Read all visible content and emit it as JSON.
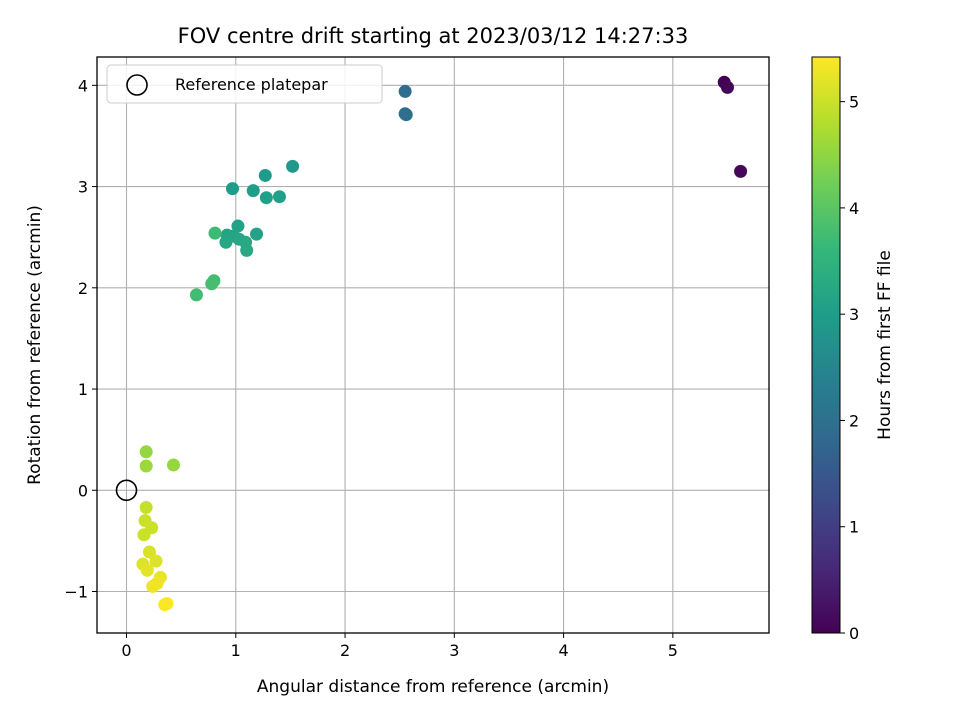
{
  "chart_data": {
    "type": "scatter",
    "title": "FOV centre drift starting at 2023/03/12 14:27:33",
    "xlabel": "Angular distance from reference (arcmin)",
    "ylabel": "Rotation from reference (arcmin)",
    "xlim": [
      -0.27,
      5.88
    ],
    "ylim": [
      -1.41,
      4.28
    ],
    "xticks": [
      0,
      1,
      2,
      3,
      4,
      5
    ],
    "yticks": [
      -1,
      0,
      1,
      2,
      3,
      4
    ],
    "xtick_labels": [
      "0",
      "1",
      "2",
      "3",
      "4",
      "5"
    ],
    "ytick_labels": [
      "−1",
      "0",
      "1",
      "2",
      "3",
      "4"
    ],
    "grid": true,
    "legend": {
      "position": "top-left",
      "entries": [
        {
          "label": "Reference platepar",
          "marker": "open-circle"
        }
      ]
    },
    "reference_point": {
      "x": 0,
      "y": 0
    },
    "colorbar": {
      "label": "Hours from first FF file",
      "range": [
        0,
        5.42
      ],
      "ticks": [
        0,
        1,
        2,
        3,
        4,
        5
      ],
      "tick_labels": [
        "0",
        "1",
        "2",
        "3",
        "4",
        "5"
      ],
      "colormap": "viridis",
      "colors": [
        "#440154",
        "#482878",
        "#3e4989",
        "#31688e",
        "#26828e",
        "#1f9e89",
        "#35b779",
        "#6ece58",
        "#b5de2b",
        "#fde725"
      ]
    },
    "points": [
      {
        "x": 5.47,
        "y": 4.03,
        "c": 0.0
      },
      {
        "x": 5.5,
        "y": 3.98,
        "c": 0.05
      },
      {
        "x": 5.62,
        "y": 3.15,
        "c": 0.1
      },
      {
        "x": 2.55,
        "y": 3.94,
        "c": 1.9
      },
      {
        "x": 2.55,
        "y": 3.72,
        "c": 1.95
      },
      {
        "x": 2.56,
        "y": 3.71,
        "c": 1.97
      },
      {
        "x": 1.52,
        "y": 3.2,
        "c": 2.9
      },
      {
        "x": 1.27,
        "y": 3.11,
        "c": 2.95
      },
      {
        "x": 0.97,
        "y": 2.98,
        "c": 3.0
      },
      {
        "x": 1.16,
        "y": 2.96,
        "c": 3.0
      },
      {
        "x": 1.4,
        "y": 2.9,
        "c": 3.05
      },
      {
        "x": 1.28,
        "y": 2.89,
        "c": 3.05
      },
      {
        "x": 1.02,
        "y": 2.61,
        "c": 3.1
      },
      {
        "x": 0.92,
        "y": 2.52,
        "c": 3.15
      },
      {
        "x": 1.19,
        "y": 2.53,
        "c": 3.1
      },
      {
        "x": 0.98,
        "y": 2.51,
        "c": 3.15
      },
      {
        "x": 1.03,
        "y": 2.48,
        "c": 3.2
      },
      {
        "x": 0.91,
        "y": 2.45,
        "c": 3.2
      },
      {
        "x": 1.09,
        "y": 2.45,
        "c": 3.25
      },
      {
        "x": 1.1,
        "y": 2.37,
        "c": 3.25
      },
      {
        "x": 0.81,
        "y": 2.54,
        "c": 3.7
      },
      {
        "x": 0.8,
        "y": 2.07,
        "c": 3.75
      },
      {
        "x": 0.78,
        "y": 2.04,
        "c": 3.8
      },
      {
        "x": 0.64,
        "y": 1.93,
        "c": 3.75
      },
      {
        "x": 0.18,
        "y": 0.38,
        "c": 4.55
      },
      {
        "x": 0.18,
        "y": 0.24,
        "c": 4.6
      },
      {
        "x": 0.43,
        "y": 0.25,
        "c": 4.55
      },
      {
        "x": 0.18,
        "y": -0.17,
        "c": 4.95
      },
      {
        "x": 0.17,
        "y": -0.3,
        "c": 5.0
      },
      {
        "x": 0.23,
        "y": -0.37,
        "c": 5.0
      },
      {
        "x": 0.16,
        "y": -0.44,
        "c": 5.0
      },
      {
        "x": 0.21,
        "y": -0.61,
        "c": 5.1
      },
      {
        "x": 0.27,
        "y": -0.7,
        "c": 5.15
      },
      {
        "x": 0.15,
        "y": -0.73,
        "c": 5.15
      },
      {
        "x": 0.19,
        "y": -0.79,
        "c": 5.2
      },
      {
        "x": 0.31,
        "y": -0.86,
        "c": 5.25
      },
      {
        "x": 0.28,
        "y": -0.92,
        "c": 5.3
      },
      {
        "x": 0.24,
        "y": -0.95,
        "c": 5.3
      },
      {
        "x": 0.37,
        "y": -1.12,
        "c": 5.4
      },
      {
        "x": 0.35,
        "y": -1.13,
        "c": 5.4
      }
    ]
  }
}
